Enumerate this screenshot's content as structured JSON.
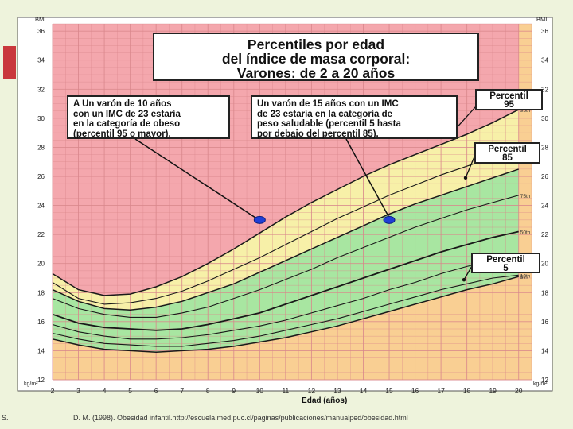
{
  "title": {
    "line1": "Percentiles por edad",
    "line2": "del índice de masa corporal:",
    "line3": "Varones: de 2 a 20 años"
  },
  "annotations": {
    "a_lines": [
      "A Un varón de 10 años",
      "con un IMC de 23 estaría",
      "en la categoría de obeso",
      "(percentil 95 o mayor)."
    ],
    "b_lines": [
      "Un varón de 15 años con un IMC",
      "de 23 estaría en la categoría de",
      "peso saludable (percentil 5 hasta",
      "por debajo del percentil 85)."
    ]
  },
  "percentile_boxes": {
    "p95": [
      "Percentil",
      "95"
    ],
    "p85": [
      "Percentil",
      "85"
    ],
    "p5": [
      "Percentil",
      "5"
    ]
  },
  "footer": {
    "left": "S.",
    "citation": "D. M. (1998). Obesidad infantil.http://escuela.med.puc.cl/paginas/publicaciones/manualped/obesidad.html"
  },
  "colors": {
    "background": "#eef3dc",
    "obese_zone": "#f4a7ad",
    "overweight_zone": "#f7f0a8",
    "healthy_zone": "#a8e6a1",
    "under_zone": "#f9cf93",
    "grid_line": "#d9878c",
    "curve": "#1a1a1a",
    "point": "#1f3fd6"
  },
  "chart_data": {
    "type": "line",
    "xlabel": "Edad (años)",
    "ylabel_top": "BMI",
    "ylabel_bottom": "kg/m²",
    "xlim": [
      2,
      20.5
    ],
    "ylim": [
      12,
      36.5
    ],
    "x_ticks": [
      2,
      3,
      4,
      5,
      6,
      7,
      8,
      9,
      10,
      11,
      12,
      13,
      14,
      15,
      16,
      17,
      18,
      19,
      20
    ],
    "y_ticks": [
      12,
      14,
      16,
      18,
      20,
      22,
      24,
      26,
      28,
      30,
      32,
      34,
      36
    ],
    "age": [
      2,
      3,
      4,
      5,
      6,
      7,
      8,
      9,
      10,
      11,
      12,
      13,
      14,
      15,
      16,
      17,
      18,
      19,
      20
    ],
    "series": [
      {
        "name": "95th",
        "values": [
          19.3,
          18.2,
          17.8,
          17.9,
          18.4,
          19.1,
          20.0,
          21.0,
          22.1,
          23.2,
          24.2,
          25.1,
          26.0,
          26.8,
          27.5,
          28.2,
          28.9,
          29.7,
          30.6
        ]
      },
      {
        "name": "90th",
        "values": [
          18.7,
          17.6,
          17.2,
          17.3,
          17.6,
          18.1,
          18.8,
          19.6,
          20.4,
          21.3,
          22.2,
          23.1,
          23.9,
          24.7,
          25.4,
          26.1,
          26.7,
          27.3,
          28.0
        ]
      },
      {
        "name": "85th",
        "values": [
          18.2,
          17.4,
          16.9,
          16.8,
          17.0,
          17.4,
          18.0,
          18.6,
          19.4,
          20.2,
          21.0,
          21.8,
          22.6,
          23.4,
          24.1,
          24.7,
          25.3,
          25.9,
          26.5
        ]
      },
      {
        "name": "75th",
        "values": [
          17.6,
          16.9,
          16.5,
          16.3,
          16.3,
          16.6,
          17.0,
          17.6,
          18.2,
          18.9,
          19.6,
          20.4,
          21.1,
          21.8,
          22.5,
          23.1,
          23.7,
          24.2,
          24.7
        ]
      },
      {
        "name": "50th",
        "values": [
          16.5,
          15.9,
          15.6,
          15.5,
          15.4,
          15.5,
          15.8,
          16.2,
          16.6,
          17.2,
          17.8,
          18.4,
          19.0,
          19.6,
          20.2,
          20.8,
          21.3,
          21.8,
          22.2
        ]
      },
      {
        "name": "25th",
        "values": [
          15.8,
          15.3,
          15.0,
          14.8,
          14.8,
          14.9,
          15.1,
          15.4,
          15.7,
          16.1,
          16.6,
          17.1,
          17.6,
          18.2,
          18.7,
          19.3,
          19.8,
          20.2,
          20.5
        ]
      },
      {
        "name": "10th",
        "values": [
          15.2,
          14.8,
          14.5,
          14.4,
          14.3,
          14.3,
          14.5,
          14.7,
          15.0,
          15.4,
          15.8,
          16.2,
          16.7,
          17.2,
          17.7,
          18.2,
          18.6,
          19.0,
          19.2
        ]
      },
      {
        "name": "5th",
        "values": [
          14.8,
          14.4,
          14.1,
          14.0,
          13.9,
          14.0,
          14.1,
          14.3,
          14.6,
          14.9,
          15.3,
          15.7,
          16.2,
          16.7,
          17.2,
          17.7,
          18.2,
          18.6,
          19.1
        ]
      }
    ],
    "series_labels": [
      "95th",
      "90th",
      "75th",
      "50th",
      "25th",
      "10th",
      "5th"
    ],
    "points": [
      {
        "age": 10,
        "bmi": 23
      },
      {
        "age": 15,
        "bmi": 23
      }
    ],
    "grid": true
  }
}
